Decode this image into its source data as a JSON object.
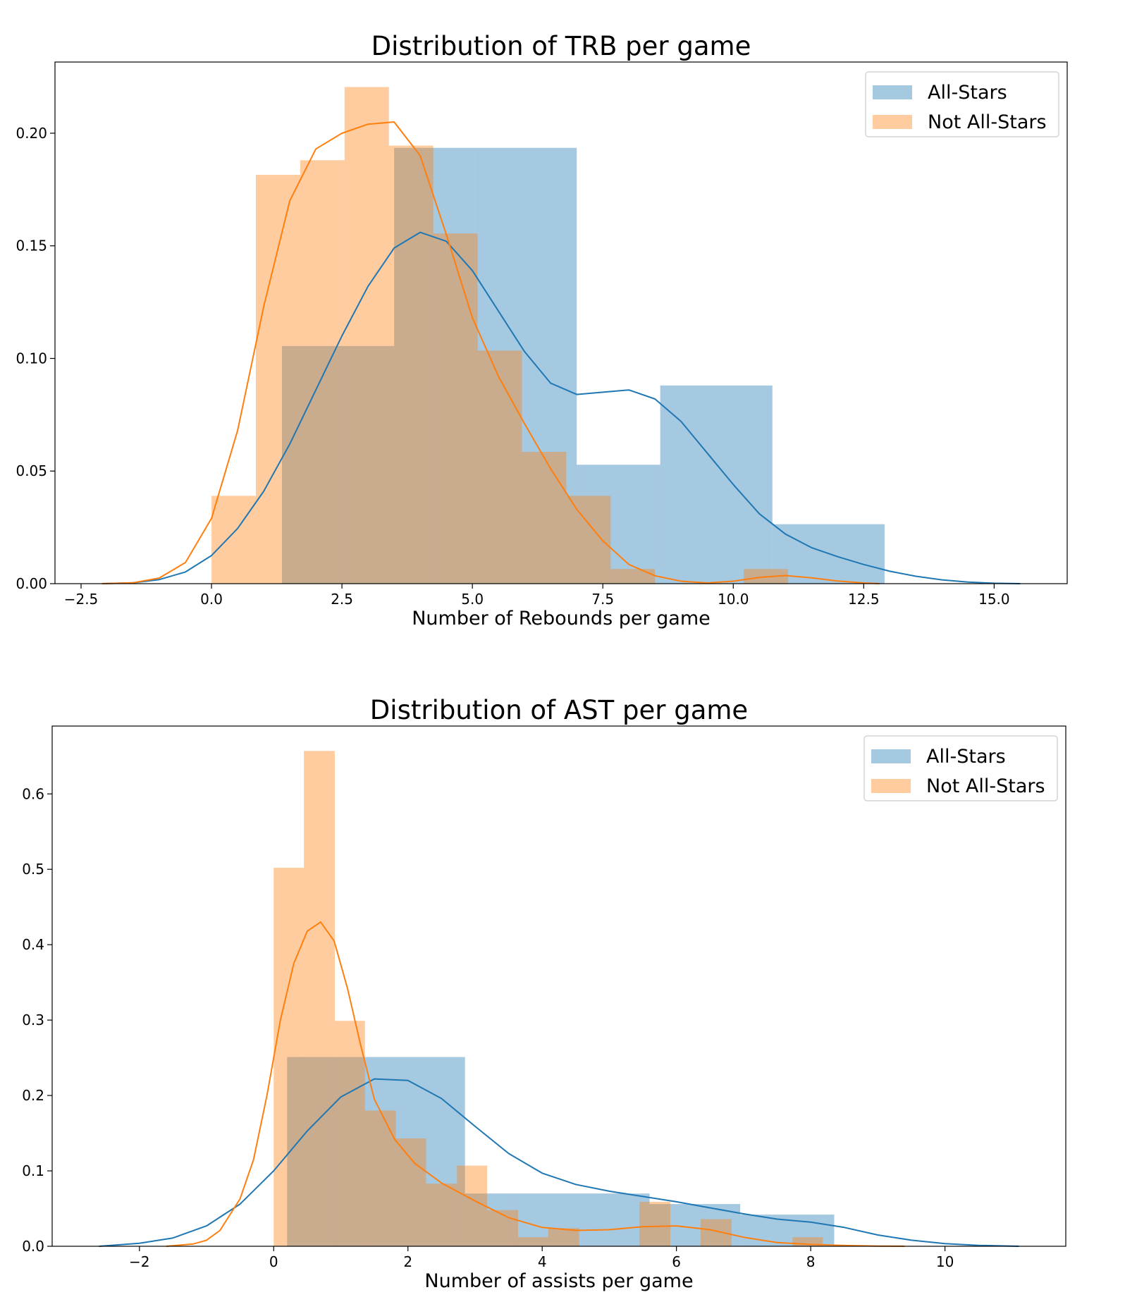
{
  "colors": {
    "all_stars": "#1f77b4",
    "not_all_stars": "#ff7f0e",
    "all_stars_fill": "#a5c8e1",
    "not_all_stars_fill": "#fec998",
    "overlap_fill": "#c9a98a"
  },
  "chart_data": [
    {
      "type": "histogram",
      "title": "Distribution of TRB per game",
      "xlabel": "Number of Rebounds per game",
      "ylabel": "",
      "xlim": [
        -3.0,
        16.4
      ],
      "ylim": [
        0,
        0.2316
      ],
      "xticks": [
        -2.5,
        0.0,
        2.5,
        5.0,
        7.5,
        10.0,
        12.5,
        15.0
      ],
      "xtick_labels": [
        "−2.5",
        "0.0",
        "2.5",
        "5.0",
        "7.5",
        "10.0",
        "12.5",
        "15.0"
      ],
      "yticks": [
        0.0,
        0.05,
        0.1,
        0.15,
        0.2
      ],
      "ytick_labels": [
        "0.00",
        "0.05",
        "0.10",
        "0.15",
        "0.20"
      ],
      "grid": false,
      "legend_position": "top-right",
      "series": [
        {
          "name": "All-Stars",
          "bins": [
            [
              1.35,
              3.5,
              0.1055
            ],
            [
              3.5,
              5.05,
              0.1935
            ],
            [
              5.05,
              7.0,
              0.1935
            ],
            [
              7.0,
              8.6,
              0.0528
            ],
            [
              8.6,
              10.75,
              0.088
            ],
            [
              10.75,
              12.9,
              0.0264
            ]
          ],
          "kde": [
            [
              -2.1,
              0.0
            ],
            [
              -1.5,
              0.0004
            ],
            [
              -1.0,
              0.0018
            ],
            [
              -0.5,
              0.0052
            ],
            [
              0.0,
              0.0125
            ],
            [
              0.5,
              0.0245
            ],
            [
              1.0,
              0.041
            ],
            [
              1.5,
              0.062
            ],
            [
              2.0,
              0.086
            ],
            [
              2.5,
              0.11
            ],
            [
              3.0,
              0.132
            ],
            [
              3.5,
              0.149
            ],
            [
              4.0,
              0.156
            ],
            [
              4.5,
              0.152
            ],
            [
              5.0,
              0.139
            ],
            [
              5.5,
              0.121
            ],
            [
              6.0,
              0.103
            ],
            [
              6.5,
              0.089
            ],
            [
              7.0,
              0.084
            ],
            [
              7.5,
              0.085
            ],
            [
              8.0,
              0.086
            ],
            [
              8.5,
              0.082
            ],
            [
              9.0,
              0.072
            ],
            [
              9.5,
              0.058
            ],
            [
              10.0,
              0.044
            ],
            [
              10.5,
              0.031
            ],
            [
              11.0,
              0.022
            ],
            [
              11.5,
              0.016
            ],
            [
              12.0,
              0.012
            ],
            [
              12.5,
              0.0085
            ],
            [
              13.0,
              0.0055
            ],
            [
              13.5,
              0.0033
            ],
            [
              14.0,
              0.0017
            ],
            [
              14.5,
              0.0007
            ],
            [
              15.0,
              0.0002
            ],
            [
              15.5,
              0.0
            ]
          ]
        },
        {
          "name": "Not All-Stars",
          "bins": [
            [
              0.0,
              0.85,
              0.039
            ],
            [
              0.85,
              1.7,
              0.1815
            ],
            [
              1.7,
              2.55,
              0.188
            ],
            [
              2.55,
              3.4,
              0.2205
            ],
            [
              3.4,
              4.25,
              0.1945
            ],
            [
              4.25,
              5.1,
              0.1555
            ],
            [
              5.1,
              5.95,
              0.1035
            ],
            [
              5.95,
              6.8,
              0.0585
            ],
            [
              6.8,
              7.65,
              0.039
            ],
            [
              7.65,
              8.5,
              0.0065
            ],
            [
              10.2,
              11.05,
              0.0065
            ]
          ],
          "kde": [
            [
              -2.1,
              0.0
            ],
            [
              -1.5,
              0.0004
            ],
            [
              -1.0,
              0.0025
            ],
            [
              -0.5,
              0.0094
            ],
            [
              0.0,
              0.029
            ],
            [
              0.5,
              0.068
            ],
            [
              1.0,
              0.123
            ],
            [
              1.5,
              0.17
            ],
            [
              2.0,
              0.193
            ],
            [
              2.5,
              0.2
            ],
            [
              3.0,
              0.204
            ],
            [
              3.5,
              0.205
            ],
            [
              4.0,
              0.19
            ],
            [
              4.5,
              0.155
            ],
            [
              5.0,
              0.118
            ],
            [
              5.5,
              0.092
            ],
            [
              6.0,
              0.071
            ],
            [
              6.5,
              0.051
            ],
            [
              7.0,
              0.033
            ],
            [
              7.5,
              0.019
            ],
            [
              8.0,
              0.0085
            ],
            [
              8.5,
              0.0035
            ],
            [
              9.0,
              0.0011
            ],
            [
              9.5,
              0.0003
            ],
            [
              10.0,
              0.0011
            ],
            [
              10.5,
              0.0028
            ],
            [
              11.0,
              0.0036
            ],
            [
              11.5,
              0.0026
            ],
            [
              12.0,
              0.0012
            ],
            [
              12.5,
              0.0003
            ],
            [
              12.8,
              0.0
            ]
          ]
        }
      ]
    },
    {
      "type": "histogram",
      "title": "Distribution of AST per game",
      "xlabel": "Number of assists per game",
      "ylabel": "",
      "xlim": [
        -3.3,
        11.8
      ],
      "ylim": [
        0,
        0.69
      ],
      "xticks": [
        -2,
        0,
        2,
        4,
        6,
        8,
        10
      ],
      "xtick_labels": [
        "−2",
        "0",
        "2",
        "4",
        "6",
        "8",
        "10"
      ],
      "yticks": [
        0.0,
        0.1,
        0.2,
        0.3,
        0.4,
        0.5,
        0.6
      ],
      "ytick_labels": [
        "0.0",
        "0.1",
        "0.2",
        "0.3",
        "0.4",
        "0.5",
        "0.6"
      ],
      "grid": false,
      "legend_position": "top-right",
      "series": [
        {
          "name": "All-Stars",
          "bins": [
            [
              0.2,
              1.35,
              0.251
            ],
            [
              1.35,
              2.85,
              0.251
            ],
            [
              2.85,
              3.55,
              0.07
            ],
            [
              3.55,
              5.6,
              0.07
            ],
            [
              5.6,
              6.95,
              0.056
            ],
            [
              6.95,
              8.35,
              0.042
            ]
          ],
          "kde": [
            [
              -2.6,
              0.0
            ],
            [
              -2.0,
              0.004
            ],
            [
              -1.5,
              0.011
            ],
            [
              -1.0,
              0.027
            ],
            [
              -0.5,
              0.056
            ],
            [
              0.0,
              0.1
            ],
            [
              0.5,
              0.153
            ],
            [
              1.0,
              0.198
            ],
            [
              1.5,
              0.222
            ],
            [
              2.0,
              0.22
            ],
            [
              2.5,
              0.196
            ],
            [
              3.0,
              0.159
            ],
            [
              3.5,
              0.123
            ],
            [
              4.0,
              0.097
            ],
            [
              4.5,
              0.082
            ],
            [
              5.0,
              0.073
            ],
            [
              5.5,
              0.066
            ],
            [
              6.0,
              0.059
            ],
            [
              6.5,
              0.051
            ],
            [
              7.0,
              0.043
            ],
            [
              7.5,
              0.036
            ],
            [
              8.0,
              0.032
            ],
            [
              8.5,
              0.025
            ],
            [
              9.0,
              0.015
            ],
            [
              9.5,
              0.008
            ],
            [
              10.0,
              0.0035
            ],
            [
              10.5,
              0.0012
            ],
            [
              11.1,
              0.0
            ]
          ]
        },
        {
          "name": "Not All-Stars",
          "bins": [
            [
              0.0,
              0.45,
              0.502
            ],
            [
              0.45,
              0.91,
              0.657
            ],
            [
              0.91,
              1.36,
              0.299
            ],
            [
              1.36,
              1.82,
              0.18
            ],
            [
              1.82,
              2.27,
              0.143
            ],
            [
              2.27,
              2.73,
              0.083
            ],
            [
              2.73,
              3.18,
              0.107
            ],
            [
              3.18,
              3.64,
              0.048
            ],
            [
              3.64,
              4.09,
              0.012
            ],
            [
              4.09,
              4.55,
              0.024
            ],
            [
              5.45,
              5.91,
              0.059
            ],
            [
              6.36,
              6.82,
              0.036
            ],
            [
              7.73,
              8.18,
              0.012
            ]
          ],
          "kde": [
            [
              -1.6,
              0.0
            ],
            [
              -1.2,
              0.003
            ],
            [
              -1.0,
              0.008
            ],
            [
              -0.8,
              0.021
            ],
            [
              -0.5,
              0.063
            ],
            [
              -0.3,
              0.115
            ],
            [
              -0.1,
              0.2
            ],
            [
              0.1,
              0.3
            ],
            [
              0.3,
              0.375
            ],
            [
              0.5,
              0.418
            ],
            [
              0.7,
              0.43
            ],
            [
              0.9,
              0.405
            ],
            [
              1.1,
              0.342
            ],
            [
              1.3,
              0.265
            ],
            [
              1.5,
              0.195
            ],
            [
              1.8,
              0.142
            ],
            [
              2.1,
              0.11
            ],
            [
              2.5,
              0.084
            ],
            [
              3.0,
              0.06
            ],
            [
              3.5,
              0.038
            ],
            [
              4.0,
              0.025
            ],
            [
              4.5,
              0.021
            ],
            [
              5.0,
              0.022
            ],
            [
              5.5,
              0.026
            ],
            [
              6.0,
              0.027
            ],
            [
              6.5,
              0.022
            ],
            [
              7.0,
              0.012
            ],
            [
              7.5,
              0.005
            ],
            [
              8.0,
              0.0024
            ],
            [
              8.5,
              0.001
            ],
            [
              9.0,
              0.0003
            ],
            [
              9.4,
              0.0
            ]
          ]
        }
      ]
    }
  ]
}
